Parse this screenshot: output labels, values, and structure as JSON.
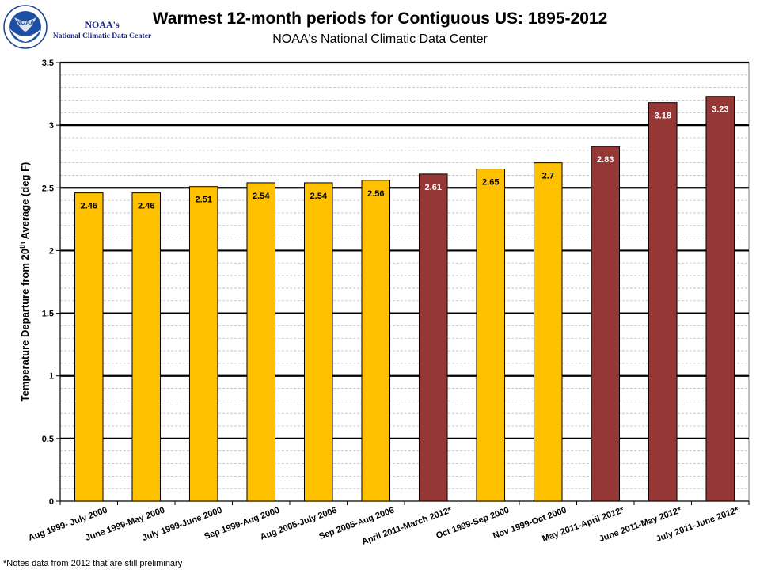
{
  "logo": {
    "icon": "noaa-logo-icon",
    "badge_text": "NOAA",
    "title": "NOAA's",
    "subtitle": "National Climatic Data Center"
  },
  "chart_data": {
    "type": "bar",
    "title": "Warmest 12-month periods for Contiguous US: 1895-2012",
    "subtitle": "NOAA's National Climatic Data Center",
    "ylabel_parts": [
      "Temperature Departure from 20",
      "th",
      " Average (deg F)"
    ],
    "xlabel": "",
    "ylim": [
      0,
      3.5
    ],
    "y_ticks": [
      "0",
      "0.5",
      "1",
      "1.5",
      "2",
      "2.5",
      "3",
      "3.5"
    ],
    "y_major_step": 0.5,
    "y_minor_step": 0.1,
    "grid": true,
    "categories": [
      "Aug 1999- July 2000",
      "June 1999-May 2000",
      "July 1999-June 2000",
      "Sep 1999-Aug 2000",
      "Aug 2005-July 2006",
      "Sep 2005-Aug 2006",
      "April 2011-March 2012*",
      "Oct 1999-Sep 2000",
      "Nov 1999-Oct 2000",
      "May 2011-April 2012*",
      "June 2011-May 2012*",
      "July 2011-June 2012*"
    ],
    "values": [
      2.46,
      2.46,
      2.51,
      2.54,
      2.54,
      2.56,
      2.61,
      2.65,
      2.7,
      2.83,
      3.18,
      3.23
    ],
    "data_labels": [
      "2.46",
      "2.46",
      "2.51",
      "2.54",
      "2.54",
      "2.56",
      "2.61",
      "2.65",
      "2.7",
      "2.83",
      "3.18",
      "3.23"
    ],
    "highlight": [
      false,
      false,
      false,
      false,
      false,
      false,
      true,
      false,
      false,
      true,
      true,
      true
    ],
    "colors": {
      "normal": "#FFC000",
      "highlight": "#953735",
      "normal_label": "#000000",
      "highlight_label": "#FFFFFF"
    }
  },
  "footnote": "*Notes  data from 2012 that are still preliminary"
}
